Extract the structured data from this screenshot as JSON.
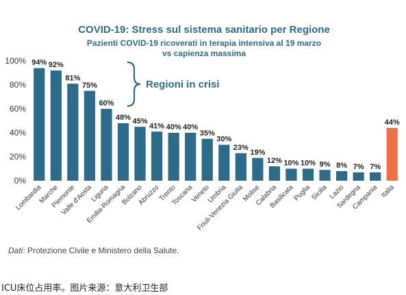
{
  "chart_data": {
    "type": "bar",
    "title": "COVID-19: Stress sul sistema sanitario per Regione",
    "subtitle_line1": "Pazienti COVID-19 ricoverati in terapia intensiva al 19 marzo",
    "subtitle_line2": "vs capienza massima",
    "categories": [
      "Lombardia",
      "Marche",
      "Piemonte",
      "Valle d'Aosta",
      "Liguria",
      "Emilia-Romagna",
      "Bolzano",
      "Abruzzo",
      "Trento",
      "Toscana",
      "Veneto",
      "Umbria",
      "Friuli-Venezia Giulia",
      "Molise",
      "Calabria",
      "Basilicata",
      "Puglia",
      "Sicilia",
      "Lazio",
      "Sardegna",
      "Campania",
      "Italia"
    ],
    "values": [
      94,
      92,
      81,
      75,
      60,
      48,
      45,
      41,
      40,
      40,
      35,
      30,
      23,
      19,
      12,
      10,
      10,
      9,
      8,
      7,
      7,
      44
    ],
    "value_labels": [
      "94%",
      "92%",
      "81%",
      "75%",
      "60%",
      "48%",
      "45%",
      "41%",
      "40%",
      "40%",
      "35%",
      "30%",
      "23%",
      "19%",
      "12%",
      "10%",
      "10%",
      "9%",
      "8%",
      "7%",
      "7%",
      "44%"
    ],
    "ylim": [
      0,
      100
    ],
    "yticks": [
      0,
      20,
      40,
      60,
      80,
      100
    ],
    "ytick_labels": [
      "0%",
      "20%",
      "40%",
      "60%",
      "80%",
      "100%"
    ],
    "grid": false,
    "annotation": "Regioni in crisi",
    "colors": {
      "bar": "#2c6b8a",
      "highlight": "#f07048",
      "title": "#2c6b8a",
      "annotation": "#2c6b8a"
    },
    "highlight_category": "Italia"
  },
  "source": {
    "prefix": "Dati",
    "text": ": Protezione Civile e Ministero della Salute."
  },
  "caption": "ICU床位占用率。图片来源：意大利卫生部"
}
